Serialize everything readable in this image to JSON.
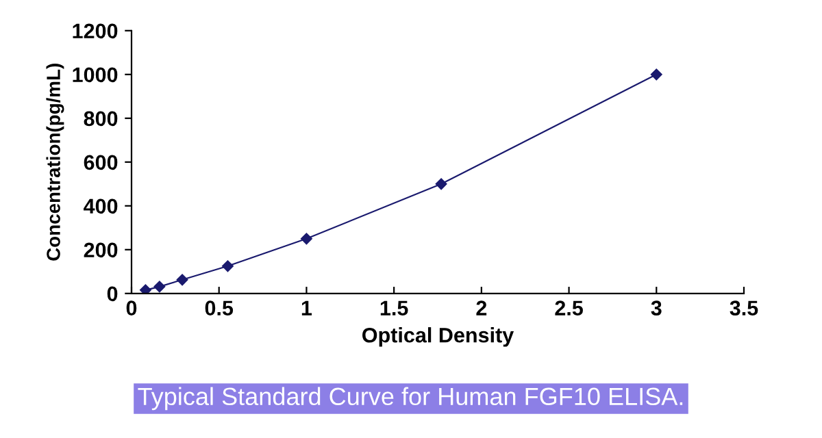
{
  "chart_data": {
    "type": "line",
    "xlabel": "Optical Density",
    "ylabel": "Concentration(pg/mL)",
    "annotations": [
      "Typical Standard Curve for Human FGF10 ELISA."
    ],
    "series": [
      {
        "color": "#1a1a6e",
        "x": [
          0.08,
          0.16,
          0.29,
          0.55,
          1.0,
          1.77,
          3.0
        ],
        "values": [
          15.6,
          31.2,
          62.5,
          125,
          250,
          500,
          1000
        ]
      }
    ],
    "marker": "diamond",
    "line_style": "solid",
    "xlim": [
      0,
      3.5
    ],
    "xticks": [
      0,
      0.5,
      1,
      1.5,
      2,
      2.5,
      3,
      3.5
    ],
    "ylim": [
      0,
      1200
    ],
    "yticks": [
      0,
      200,
      400,
      600,
      800,
      1000,
      1200
    ],
    "grid": false,
    "legend": false
  }
}
